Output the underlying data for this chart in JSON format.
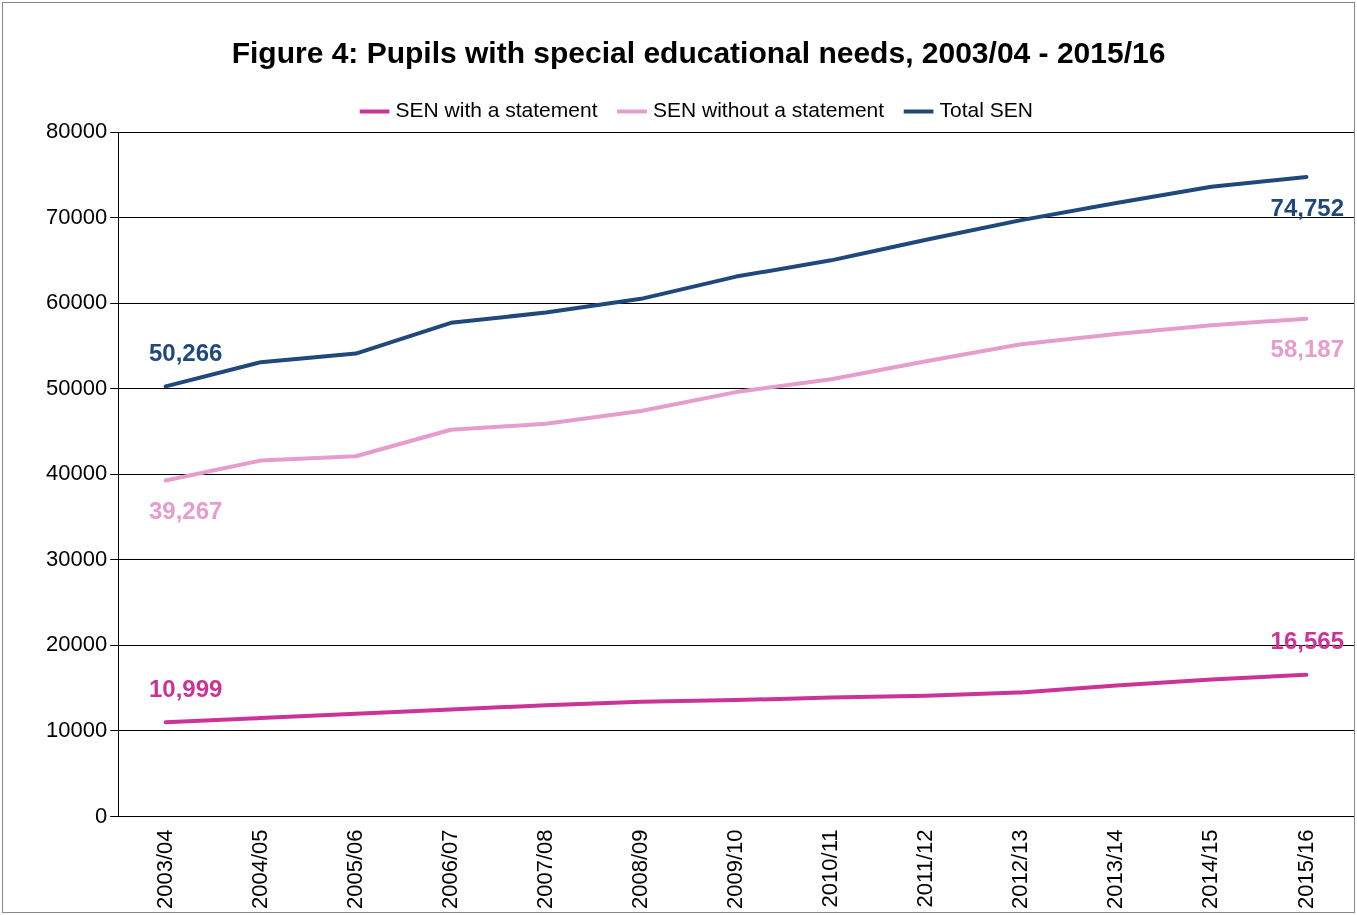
{
  "chart_data": {
    "type": "line",
    "title": "Figure 4: Pupils with special educational needs, 2003/04 - 2015/16",
    "categories": [
      "2003/04",
      "2004/05",
      "2005/06",
      "2006/07",
      "2007/08",
      "2008/09",
      "2009/10",
      "2010/11",
      "2011/12",
      "2012/13",
      "2013/14",
      "2014/15",
      "2015/16"
    ],
    "series": [
      {
        "name": "SEN with a statement",
        "color": "#cc3399",
        "values": [
          10999,
          11500,
          12000,
          12500,
          13000,
          13400,
          13600,
          13900,
          14100,
          14500,
          15300,
          16000,
          16565
        ],
        "value_labels": [
          "10,999",
          null,
          null,
          null,
          null,
          null,
          null,
          null,
          null,
          null,
          null,
          null,
          "16,565"
        ]
      },
      {
        "name": "SEN without a statement",
        "color": "#e69ccc",
        "values": [
          39267,
          41600,
          42100,
          45200,
          45900,
          47400,
          49600,
          51100,
          53200,
          55200,
          56400,
          57400,
          58187
        ],
        "value_labels": [
          "39,267",
          null,
          null,
          null,
          null,
          null,
          null,
          null,
          null,
          null,
          null,
          null,
          "58,187"
        ]
      },
      {
        "name": "Total SEN",
        "color": "#1f497d",
        "values": [
          50266,
          53100,
          54100,
          57700,
          58900,
          60500,
          63100,
          65000,
          67400,
          69700,
          71700,
          73600,
          74752
        ],
        "value_labels": [
          "50,266",
          null,
          null,
          null,
          null,
          null,
          null,
          null,
          null,
          null,
          null,
          null,
          "74,752"
        ]
      }
    ],
    "ylim": [
      0,
      80000
    ],
    "yticks": [
      0,
      10000,
      20000,
      30000,
      40000,
      50000,
      60000,
      70000,
      80000
    ],
    "grid": "y",
    "legend": "top",
    "marker": "none",
    "line_style": "solid"
  }
}
